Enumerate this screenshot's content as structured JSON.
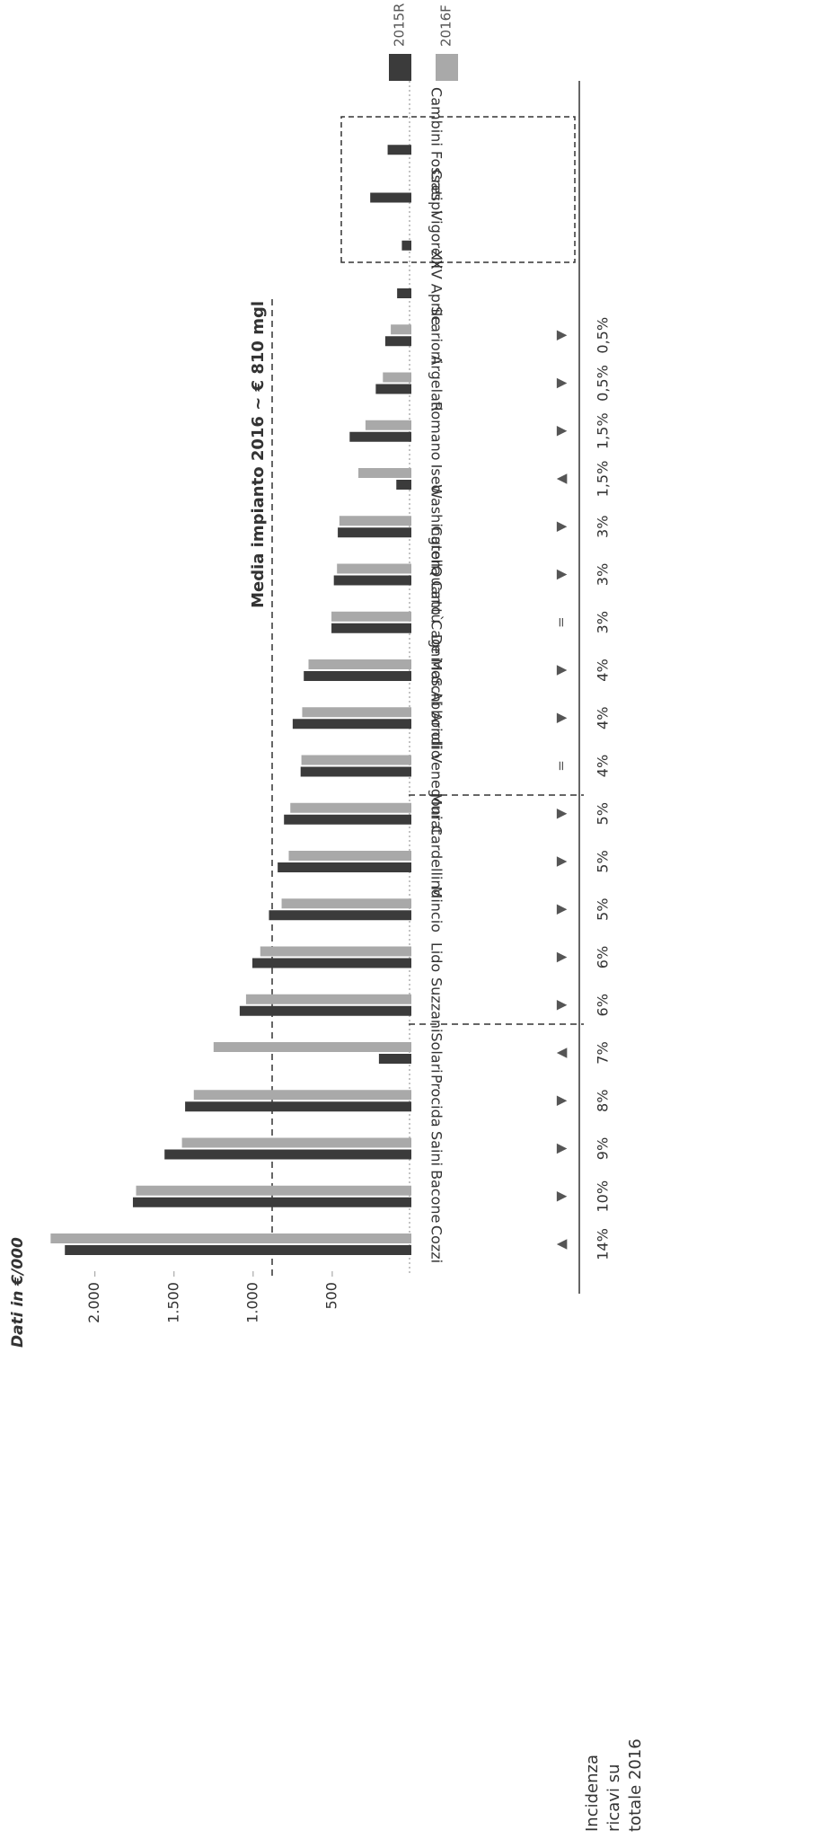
{
  "chart_data": {
    "type": "bar",
    "title": "Dati in €/000",
    "annotation": "Media impianto 2016 ~ € 810 mgl",
    "share_label": [
      "Incidenza",
      "ricavi su",
      "totale 2016"
    ],
    "categories": [
      "Cozzi",
      "Bacone",
      "Saini",
      "Procida",
      "Solari",
      "Suzzani",
      "Lido",
      "Mincio",
      "Cardellino",
      "Murat",
      "Arioli Venegoni",
      "S.Abbondio",
      "De Marchi",
      "Quarto Cagnino",
      "Carella Cantù",
      "Washington",
      "Iseo",
      "Romano",
      "Argelati",
      "Scarioni",
      "XXV Aprile",
      "Vigorelli",
      "Crespi",
      "Cambini Fossati"
    ],
    "series": [
      {
        "name": "2015R",
        "color": "#3b3b3b",
        "values": [
          2190,
          1760,
          1560,
          1430,
          205,
          1085,
          1005,
          900,
          845,
          805,
          700,
          750,
          680,
          505,
          490,
          465,
          95,
          390,
          225,
          165,
          90,
          60,
          260,
          150
        ]
      },
      {
        "name": "2016F",
        "color": "#a9a9a9",
        "values": [
          2280,
          1740,
          1450,
          1375,
          1250,
          1045,
          955,
          820,
          775,
          765,
          695,
          690,
          650,
          505,
          470,
          455,
          335,
          290,
          180,
          130,
          null,
          null,
          null,
          null
        ]
      }
    ],
    "share": [
      "14%",
      "10%",
      "9%",
      "8%",
      "7%",
      "6%",
      "6%",
      "5%",
      "5%",
      "5%",
      "4%",
      "4%",
      "4%",
      "3%",
      "3%",
      "3%",
      "1,5%",
      "1,5%",
      "0,5%",
      "0,5%",
      null,
      null,
      null,
      null
    ],
    "trend": [
      "▲",
      "▼",
      "▼",
      "▼",
      "▲",
      "▼",
      "▼",
      "▼",
      "▼",
      "▼",
      "=",
      "▼",
      "▼",
      "=",
      "▼",
      "▼",
      "▲",
      "▼",
      "▼",
      "▼",
      null,
      null,
      null,
      null
    ],
    "ylim": [
      0,
      2600
    ],
    "yticks": [
      500,
      {
        "value": 1000,
        "label": "1.000"
      },
      {
        "value": 1500,
        "label": "1.500"
      },
      {
        "value": 2000,
        "label": "2.000"
      }
    ]
  }
}
